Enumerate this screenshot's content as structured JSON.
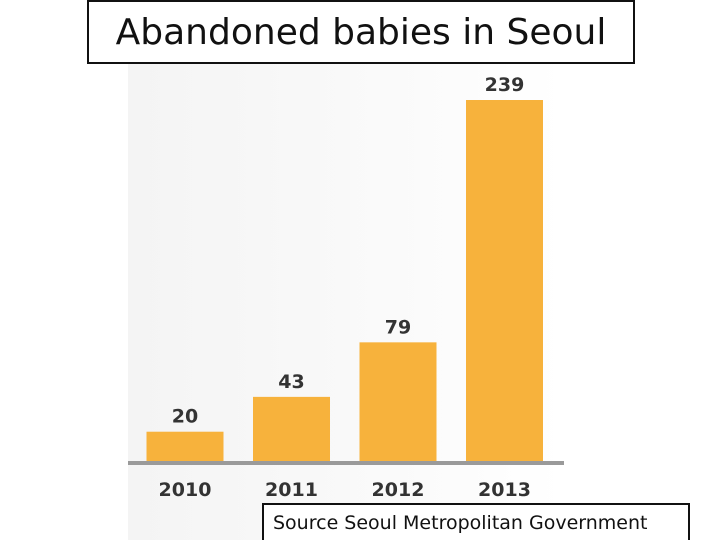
{
  "title": "Abandoned babies in Seoul",
  "source": "Source Seoul Metropolitan Government",
  "colors": {
    "bar": "#f7b23c",
    "baseline": "#9a9a9a",
    "label": "#333333"
  },
  "chart_data": {
    "type": "bar",
    "categories": [
      "2010",
      "2011",
      "2012",
      "2013"
    ],
    "values": [
      20,
      43,
      79,
      239
    ],
    "value_labels": [
      "20",
      "43",
      "79",
      "239"
    ],
    "grid": false,
    "legend": "none"
  }
}
